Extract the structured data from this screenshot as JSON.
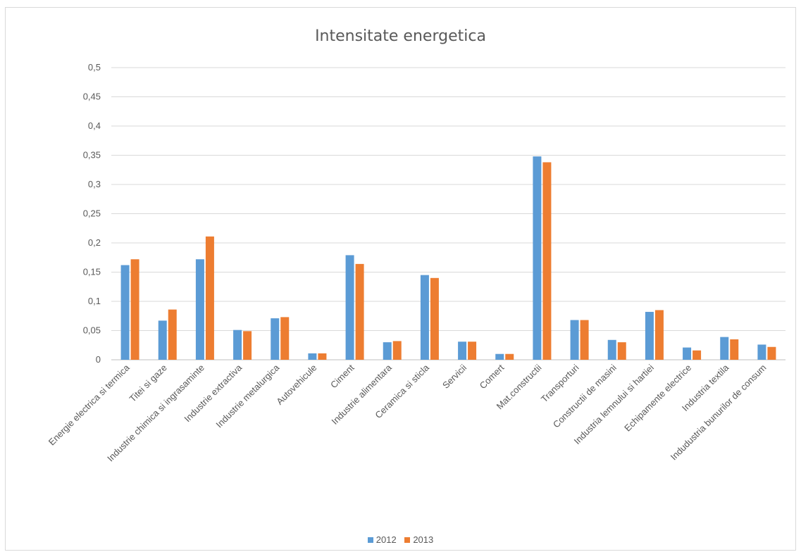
{
  "chart_data": {
    "type": "bar",
    "title": "Intensitate energetica",
    "categories": [
      "Energie  electrica si termica",
      "Titei si gaze",
      "Industrie chimica si ingrasaminte",
      "Industrie extractiva",
      "Industrie metalurgica",
      "Autovehicule",
      "Ciment",
      "Industrie alimentara",
      "Ceramica si sticla",
      "Servicii",
      "Comert",
      "Mat.constructii",
      "Transporturi",
      "Constructii de masini",
      "Industria lemnului si hartiei",
      "Echipamente electrice",
      "Industria textila",
      "Indudustria bunurilor de consum"
    ],
    "series": [
      {
        "name": "2012",
        "color": "#5b9bd5",
        "values": [
          0.162,
          0.067,
          0.172,
          0.051,
          0.071,
          0.011,
          0.179,
          0.03,
          0.145,
          0.031,
          0.01,
          0.348,
          0.068,
          0.034,
          0.082,
          0.021,
          0.039,
          0.026
        ]
      },
      {
        "name": "2013",
        "color": "#ed7d31",
        "values": [
          0.172,
          0.086,
          0.211,
          0.049,
          0.073,
          0.011,
          0.164,
          0.032,
          0.14,
          0.031,
          0.01,
          0.338,
          0.068,
          0.03,
          0.085,
          0.016,
          0.035,
          0.022
        ]
      }
    ],
    "yticks": [
      "0",
      "0,05",
      "0,1",
      "0,15",
      "0,2",
      "0,25",
      "0,3",
      "0,35",
      "0,4",
      "0,45",
      "0,5"
    ],
    "ylim": [
      0,
      0.5
    ],
    "xlabel": "",
    "ylabel": "",
    "grid": true,
    "legend_position": "bottom"
  }
}
